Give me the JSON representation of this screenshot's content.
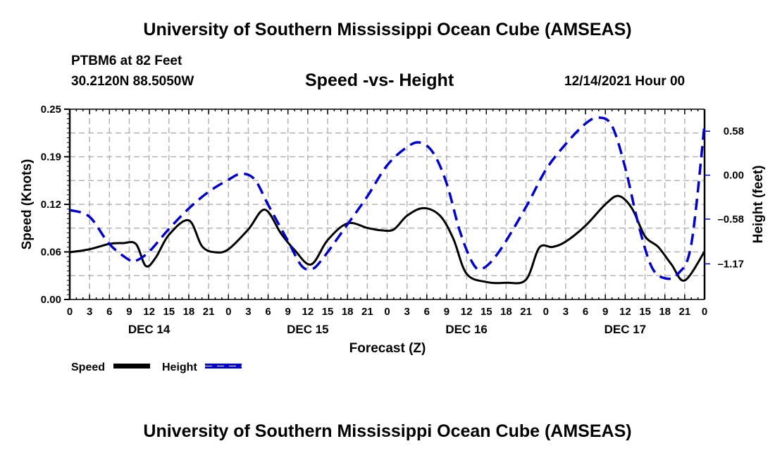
{
  "header": {
    "main_title": "University of Southern Mississippi Ocean Cube (AMSEAS)",
    "station": "PTBM6 at 82 Feet",
    "coords": "30.2120N  88.5050W",
    "subtitle": "Speed -vs- Height",
    "datetime": "12/14/2021 Hour 00"
  },
  "footer": {
    "bottom_title": "University of Southern Mississippi Ocean Cube (AMSEAS)"
  },
  "colors": {
    "speed": "#000000",
    "height": "#0000cc",
    "grid": "#b4b4b4"
  },
  "chart_data": {
    "type": "line",
    "title": "Speed -vs- Height",
    "xlabel": "Forecast (Z)",
    "ylabel": "Speed (Knots)",
    "y2label": "Height (feet)",
    "xlim": [
      0,
      96
    ],
    "ylim": [
      0,
      0.25
    ],
    "y2lim": [
      -1.64,
      0.87
    ],
    "grid": true,
    "x_ticks": [
      0,
      3,
      6,
      9,
      12,
      15,
      18,
      21,
      24,
      27,
      30,
      33,
      36,
      39,
      42,
      45,
      48,
      51,
      54,
      57,
      60,
      63,
      66,
      69,
      72,
      75,
      78,
      81,
      84,
      87,
      90,
      93,
      96
    ],
    "x_tick_labels": [
      "0",
      "3",
      "6",
      "9",
      "12",
      "15",
      "18",
      "21",
      "0",
      "3",
      "6",
      "9",
      "12",
      "15",
      "18",
      "21",
      "0",
      "3",
      "6",
      "9",
      "12",
      "15",
      "18",
      "21",
      "0",
      "3",
      "6",
      "9",
      "12",
      "15",
      "18",
      "21",
      "0"
    ],
    "day_labels": [
      {
        "label": "DEC 14",
        "at": 12
      },
      {
        "label": "DEC 15",
        "at": 36
      },
      {
        "label": "DEC 16",
        "at": 60
      },
      {
        "label": "DEC 17",
        "at": 84
      }
    ],
    "y_ticks": [
      0.0,
      0.0625,
      0.125,
      0.1875,
      0.25
    ],
    "y_tick_labels": [
      "0.00",
      "0.06",
      "0.12",
      "0.19",
      "0.25"
    ],
    "y2_ticks": [
      0.58,
      0.0,
      -0.58,
      -1.17
    ],
    "y2_tick_labels": [
      "0.58",
      "0.00",
      "–0.58",
      "–1.17"
    ],
    "legend": [
      {
        "name": "Speed",
        "style": "solid"
      },
      {
        "name": "Height",
        "style": "dashed"
      }
    ],
    "legend_position": "bottom-left",
    "series": [
      {
        "name": "Speed",
        "axis": "left",
        "x": [
          0,
          3,
          6,
          8,
          10,
          11.5,
          13,
          15,
          18,
          20,
          22,
          24,
          27,
          29.5,
          32,
          34,
          36.5,
          39,
          42,
          45,
          47,
          49,
          51,
          53.5,
          56,
          58,
          60,
          63,
          66,
          69,
          71,
          73,
          75,
          78,
          81,
          83,
          85,
          87,
          89,
          91,
          93,
          96
        ],
        "values": [
          0.062,
          0.066,
          0.073,
          0.074,
          0.073,
          0.044,
          0.055,
          0.085,
          0.104,
          0.07,
          0.062,
          0.066,
          0.092,
          0.118,
          0.086,
          0.065,
          0.046,
          0.078,
          0.1,
          0.094,
          0.091,
          0.092,
          0.11,
          0.12,
          0.11,
          0.08,
          0.034,
          0.023,
          0.022,
          0.026,
          0.068,
          0.069,
          0.076,
          0.097,
          0.125,
          0.136,
          0.12,
          0.083,
          0.069,
          0.046,
          0.025,
          0.063
        ]
      },
      {
        "name": "Height",
        "axis": "right",
        "x": [
          0,
          3,
          6,
          9,
          10,
          12,
          15,
          18,
          21,
          24,
          26,
          28,
          30,
          33,
          35,
          36.5,
          38,
          42,
          45,
          48,
          51,
          53,
          55,
          57,
          59,
          61,
          62.5,
          65,
          69,
          72,
          75,
          78,
          80,
          82,
          84,
          86,
          88,
          90,
          92,
          94,
          96
        ],
        "values": [
          -0.46,
          -0.55,
          -0.91,
          -1.12,
          -1.13,
          -1.01,
          -0.71,
          -0.44,
          -0.22,
          -0.06,
          0.02,
          -0.06,
          -0.39,
          -0.87,
          -1.19,
          -1.24,
          -1.13,
          -0.65,
          -0.28,
          0.13,
          0.37,
          0.43,
          0.29,
          -0.11,
          -0.74,
          -1.17,
          -1.23,
          -1.0,
          -0.42,
          0.07,
          0.41,
          0.68,
          0.76,
          0.65,
          0.1,
          -0.65,
          -1.21,
          -1.36,
          -1.3,
          -0.91,
          0.67
        ]
      }
    ]
  }
}
